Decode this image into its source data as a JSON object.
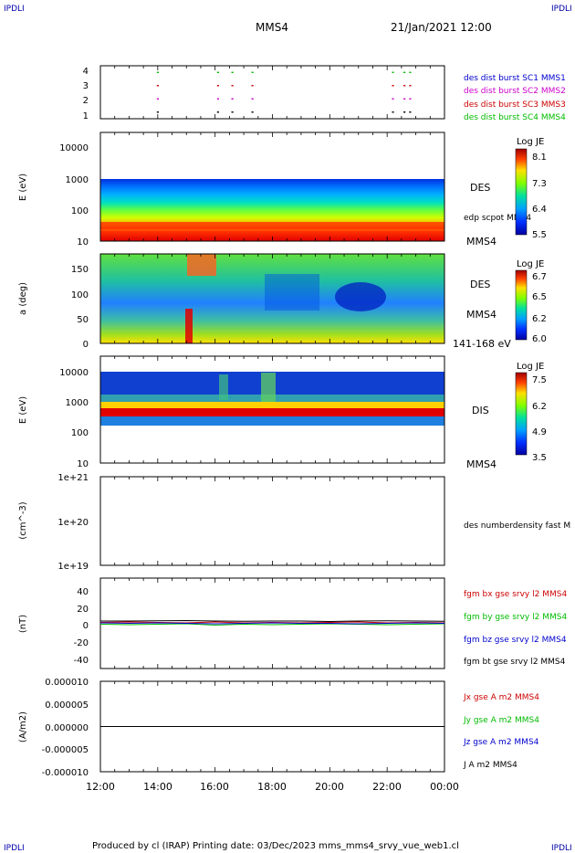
{
  "header": {
    "corner_tl": "IPDLI",
    "corner_tr": "IPDLI",
    "corner_bl": "IPDLI",
    "corner_br": "IPDLI",
    "title": "MMS4",
    "datetime": "21/Jan/2021 12:00"
  },
  "footer": {
    "text": "Produced by cl (IRAP)   Printing date: 03/Dec/2023   mms_mms4_srvy_vue_web1.cl"
  },
  "x_axis": {
    "tick_labels": [
      "12:00",
      "14:00",
      "16:00",
      "18:00",
      "20:00",
      "22:00",
      "00:00"
    ],
    "range_hours": [
      12,
      24
    ]
  },
  "colors": {
    "blue": "#0000cc",
    "magenta": "#cc00cc",
    "red": "#cc0000",
    "green": "#00bb00",
    "black": "#000000"
  },
  "chart_data": [
    {
      "type": "scatter",
      "panel": "burst-availability",
      "y_ticks": [
        "4",
        "3",
        "2",
        "1"
      ],
      "ylim": [
        0.5,
        4.5
      ],
      "legend": [
        {
          "label": "des dist burst SC1 MMS1",
          "color": "#0000cc"
        },
        {
          "label": "des dist burst SC2 MMS2",
          "color": "#cc00cc"
        },
        {
          "label": "des dist burst SC3 MMS3",
          "color": "#cc0000"
        },
        {
          "label": "des dist burst SC4 MMS4",
          "color": "#00bb00"
        }
      ],
      "burst_times_hours": [
        14.0,
        16.1,
        16.6,
        17.3,
        22.2,
        22.6,
        22.8
      ]
    },
    {
      "type": "heatmap",
      "panel": "des-energy",
      "ylabel": "E (eV)",
      "y_scale": "log",
      "ylim": [
        10,
        30000
      ],
      "y_ticks": [
        "10000",
        "1000",
        "100",
        "10"
      ],
      "right_labels": [
        "DES",
        "edp scpot MMS4",
        "MMS4"
      ],
      "colorbar": {
        "title": "Log JE",
        "ticks": [
          "8.1",
          "7.3",
          "6.4",
          "5.5"
        ],
        "range": [
          5.5,
          8.1
        ]
      }
    },
    {
      "type": "heatmap",
      "panel": "des-pitch-angle",
      "ylabel": "a (deg)",
      "ylim": [
        0,
        180
      ],
      "y_ticks": [
        "150",
        "100",
        "50",
        "0"
      ],
      "right_labels": [
        "DES",
        "MMS4",
        "141-168 eV"
      ],
      "colorbar": {
        "title": "Log JE",
        "ticks": [
          "6.7",
          "6.5",
          "6.2",
          "6.0"
        ],
        "range": [
          6.0,
          6.7
        ]
      }
    },
    {
      "type": "heatmap",
      "panel": "dis-energy",
      "ylabel": "E (eV)",
      "y_scale": "log",
      "ylim": [
        10,
        15000
      ],
      "y_ticks": [
        "10000",
        "1000",
        "100",
        "10"
      ],
      "right_labels": [
        "DIS",
        "MMS4"
      ],
      "colorbar": {
        "title": "Log JE",
        "ticks": [
          "7.5",
          "6.2",
          "4.9",
          "3.5"
        ],
        "range": [
          3.5,
          7.5
        ]
      }
    },
    {
      "type": "line",
      "panel": "density",
      "ylabel": "(cm^-3)",
      "y_scale": "log",
      "ylim": [
        1e+19,
        1e+21
      ],
      "y_ticks": [
        "1e+21",
        "1e+20",
        "1e+19"
      ],
      "series": [
        {
          "name": "des numberdensity fast M",
          "color": "#000000",
          "x": [],
          "y": []
        }
      ]
    },
    {
      "type": "line",
      "panel": "magnetic-field",
      "ylabel": "(nT)",
      "ylim": [
        -50,
        50
      ],
      "y_ticks": [
        "40",
        "20",
        "0",
        "-20",
        "-40"
      ],
      "x_hours": [
        12,
        13,
        14,
        15,
        16,
        17,
        18,
        19,
        20,
        21,
        22,
        23,
        24
      ],
      "series": [
        {
          "name": "fgm bx gse srvy l2 MMS4",
          "color": "#cc0000",
          "y": [
            1,
            1.5,
            1,
            0.5,
            1.5,
            0.5,
            1,
            0.5,
            1,
            1.5,
            0.5,
            1,
            0.5
          ]
        },
        {
          "name": "fgm by gse srvy l2 MMS4",
          "color": "#00bb00",
          "y": [
            -1,
            -1.5,
            -1,
            -0.5,
            -2,
            -1,
            -1.5,
            -1,
            -0.5,
            -1,
            -1.5,
            -1,
            -0.5
          ]
        },
        {
          "name": "fgm bz gse srvy l2 MMS4",
          "color": "#0000cc",
          "y": [
            0.5,
            0,
            0.5,
            0,
            -0.5,
            0,
            0.5,
            0,
            0,
            -0.5,
            0,
            0.5,
            0
          ]
        },
        {
          "name": "fgm bt gse srvy l2 MMS4",
          "color": "#000000",
          "y": [
            2.5,
            2.5,
            2.8,
            3,
            2.5,
            2.2,
            2.5,
            2.5,
            2,
            2.5,
            2.8,
            2.5,
            2.2
          ]
        }
      ]
    },
    {
      "type": "line",
      "panel": "current-density",
      "ylabel": "(A/m2)",
      "ylim": [
        -1e-05,
        1e-05
      ],
      "y_ticks": [
        "0.000010",
        "0.000005",
        "0.000000",
        "-0.000005",
        "-0.000010"
      ],
      "x_hours": [
        12,
        24
      ],
      "series": [
        {
          "name": "Jx gse A m2 MMS4",
          "color": "#cc0000",
          "y": [
            0,
            0
          ]
        },
        {
          "name": "Jy gse A m2 MMS4",
          "color": "#00bb00",
          "y": [
            0,
            0
          ]
        },
        {
          "name": "Jz gse A m2 MMS4",
          "color": "#0000cc",
          "y": [
            0,
            0
          ]
        },
        {
          "name": "J A m2 MMS4",
          "color": "#000000",
          "y": [
            0,
            0
          ]
        }
      ]
    }
  ]
}
